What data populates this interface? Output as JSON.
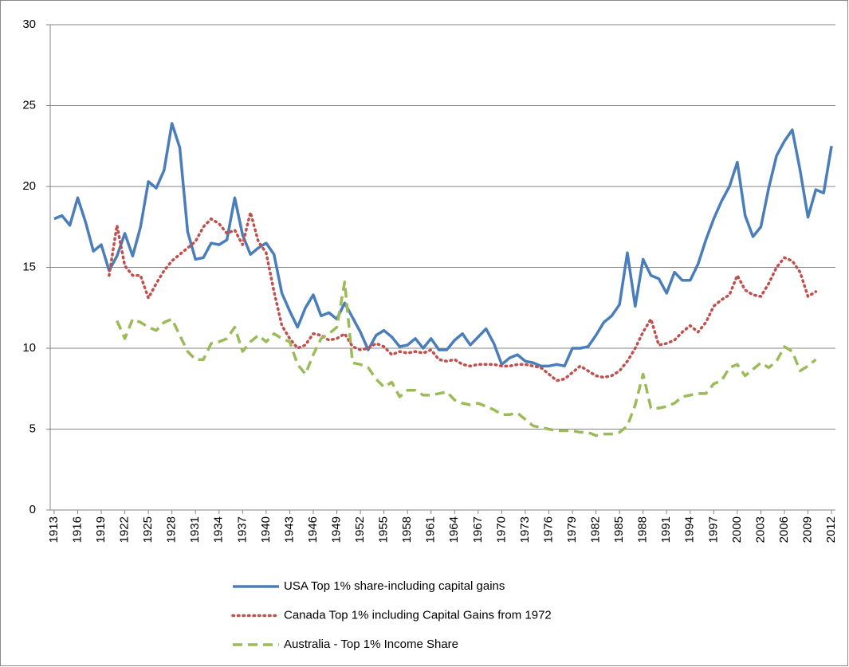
{
  "chart_data": {
    "type": "line",
    "x": [
      1913,
      1914,
      1915,
      1916,
      1917,
      1918,
      1919,
      1920,
      1921,
      1922,
      1923,
      1924,
      1925,
      1926,
      1927,
      1928,
      1929,
      1930,
      1931,
      1932,
      1933,
      1934,
      1935,
      1936,
      1937,
      1938,
      1939,
      1940,
      1941,
      1942,
      1943,
      1944,
      1945,
      1946,
      1947,
      1948,
      1949,
      1950,
      1951,
      1952,
      1953,
      1954,
      1955,
      1956,
      1957,
      1958,
      1959,
      1960,
      1961,
      1962,
      1963,
      1964,
      1965,
      1966,
      1967,
      1968,
      1969,
      1970,
      1971,
      1972,
      1973,
      1974,
      1975,
      1976,
      1977,
      1978,
      1979,
      1980,
      1981,
      1982,
      1983,
      1984,
      1985,
      1986,
      1987,
      1988,
      1989,
      1990,
      1991,
      1992,
      1993,
      1994,
      1995,
      1996,
      1997,
      1998,
      1999,
      2000,
      2001,
      2002,
      2003,
      2004,
      2005,
      2006,
      2007,
      2008,
      2009,
      2010,
      2011,
      2012
    ],
    "xlim": [
      1912.5,
      2012.5
    ],
    "xticks": [
      1913,
      1916,
      1919,
      1922,
      1925,
      1928,
      1931,
      1934,
      1937,
      1940,
      1943,
      1946,
      1949,
      1952,
      1955,
      1958,
      1961,
      1964,
      1967,
      1970,
      1973,
      1976,
      1979,
      1982,
      1985,
      1988,
      1991,
      1994,
      1997,
      2000,
      2003,
      2006,
      2009,
      2012
    ],
    "ylim": [
      0,
      30
    ],
    "yticks": [
      0,
      5,
      10,
      15,
      20,
      25,
      30
    ],
    "grid": true,
    "series": [
      {
        "name": "USA Top 1% share-including capital gains",
        "color": "#4a7ebb",
        "line_style": "solid",
        "values": [
          18.0,
          18.2,
          17.6,
          19.3,
          17.8,
          16.0,
          16.4,
          14.8,
          15.7,
          17.1,
          15.7,
          17.5,
          20.3,
          19.9,
          21.0,
          23.9,
          22.4,
          17.2,
          15.5,
          15.6,
          16.5,
          16.4,
          16.7,
          19.3,
          17.0,
          15.8,
          16.2,
          16.5,
          15.8,
          13.4,
          12.3,
          11.3,
          12.5,
          13.3,
          12.0,
          12.2,
          11.8,
          12.8,
          11.9,
          11.0,
          9.9,
          10.8,
          11.1,
          10.7,
          10.1,
          10.2,
          10.6,
          10.0,
          10.6,
          9.9,
          9.9,
          10.5,
          10.9,
          10.2,
          10.7,
          11.2,
          10.3,
          9.0,
          9.4,
          9.6,
          9.2,
          9.1,
          8.9,
          8.9,
          9.0,
          8.9,
          10.0,
          10.0,
          10.1,
          10.8,
          11.6,
          12.0,
          12.7,
          15.9,
          12.6,
          15.5,
          14.5,
          14.3,
          13.4,
          14.7,
          14.2,
          14.2,
          15.2,
          16.7,
          18.0,
          19.1,
          20.0,
          21.5,
          18.2,
          16.9,
          17.5,
          19.9,
          21.9,
          22.8,
          23.5,
          21.0,
          18.1,
          19.8,
          19.6,
          22.5
        ]
      },
      {
        "name": "Canada Top 1% including Capital Gains from 1972",
        "color": "#c0504d",
        "line_style": "dotted",
        "values": [
          null,
          null,
          null,
          null,
          null,
          null,
          null,
          14.5,
          17.6,
          15.1,
          14.5,
          14.5,
          13.1,
          14.0,
          14.8,
          15.4,
          15.8,
          16.2,
          16.6,
          17.5,
          18.0,
          17.7,
          17.1,
          17.3,
          16.4,
          18.4,
          16.6,
          15.9,
          13.5,
          11.4,
          10.6,
          10.0,
          10.2,
          10.9,
          10.8,
          10.5,
          10.6,
          10.9,
          10.1,
          9.9,
          10.0,
          10.3,
          10.1,
          9.6,
          9.8,
          9.7,
          9.8,
          9.7,
          9.9,
          9.3,
          9.2,
          9.3,
          9.0,
          8.9,
          9.0,
          9.0,
          9.0,
          8.9,
          8.9,
          9.0,
          9.0,
          8.9,
          8.8,
          8.4,
          8.0,
          8.1,
          8.5,
          8.9,
          8.6,
          8.3,
          8.2,
          8.3,
          8.6,
          9.2,
          10.0,
          11.0,
          11.8,
          10.2,
          10.3,
          10.5,
          11.0,
          11.4,
          11.0,
          11.6,
          12.6,
          13.0,
          13.3,
          14.5,
          13.6,
          13.3,
          13.2,
          14.0,
          15.0,
          15.6,
          15.4,
          14.7,
          13.2,
          13.5,
          null,
          null
        ]
      },
      {
        "name": "Australia - Top 1% Income Share",
        "color": "#9bbb59",
        "line_style": "dashed",
        "values": [
          null,
          null,
          null,
          null,
          null,
          null,
          null,
          null,
          11.7,
          10.6,
          11.8,
          11.6,
          11.3,
          11.1,
          11.6,
          11.8,
          10.8,
          9.8,
          9.3,
          9.3,
          10.3,
          10.4,
          10.6,
          11.3,
          9.8,
          10.4,
          10.8,
          10.4,
          10.9,
          10.6,
          10.4,
          9.0,
          8.4,
          9.6,
          10.6,
          10.9,
          11.3,
          14.1,
          9.1,
          9.0,
          8.8,
          8.1,
          7.6,
          7.9,
          7.0,
          7.4,
          7.4,
          7.1,
          7.1,
          7.2,
          7.3,
          6.8,
          6.6,
          6.5,
          6.6,
          6.4,
          6.2,
          5.9,
          5.9,
          6.0,
          5.6,
          5.2,
          5.1,
          5.0,
          4.9,
          4.9,
          4.9,
          4.8,
          4.8,
          4.6,
          4.7,
          4.7,
          4.8,
          5.2,
          6.5,
          8.4,
          6.3,
          6.3,
          6.4,
          6.6,
          7.0,
          7.1,
          7.2,
          7.2,
          7.8,
          8.0,
          8.8,
          9.0,
          8.3,
          8.7,
          9.1,
          8.8,
          9.2,
          10.1,
          9.8,
          8.6,
          8.9,
          9.3,
          null,
          null
        ]
      }
    ]
  }
}
